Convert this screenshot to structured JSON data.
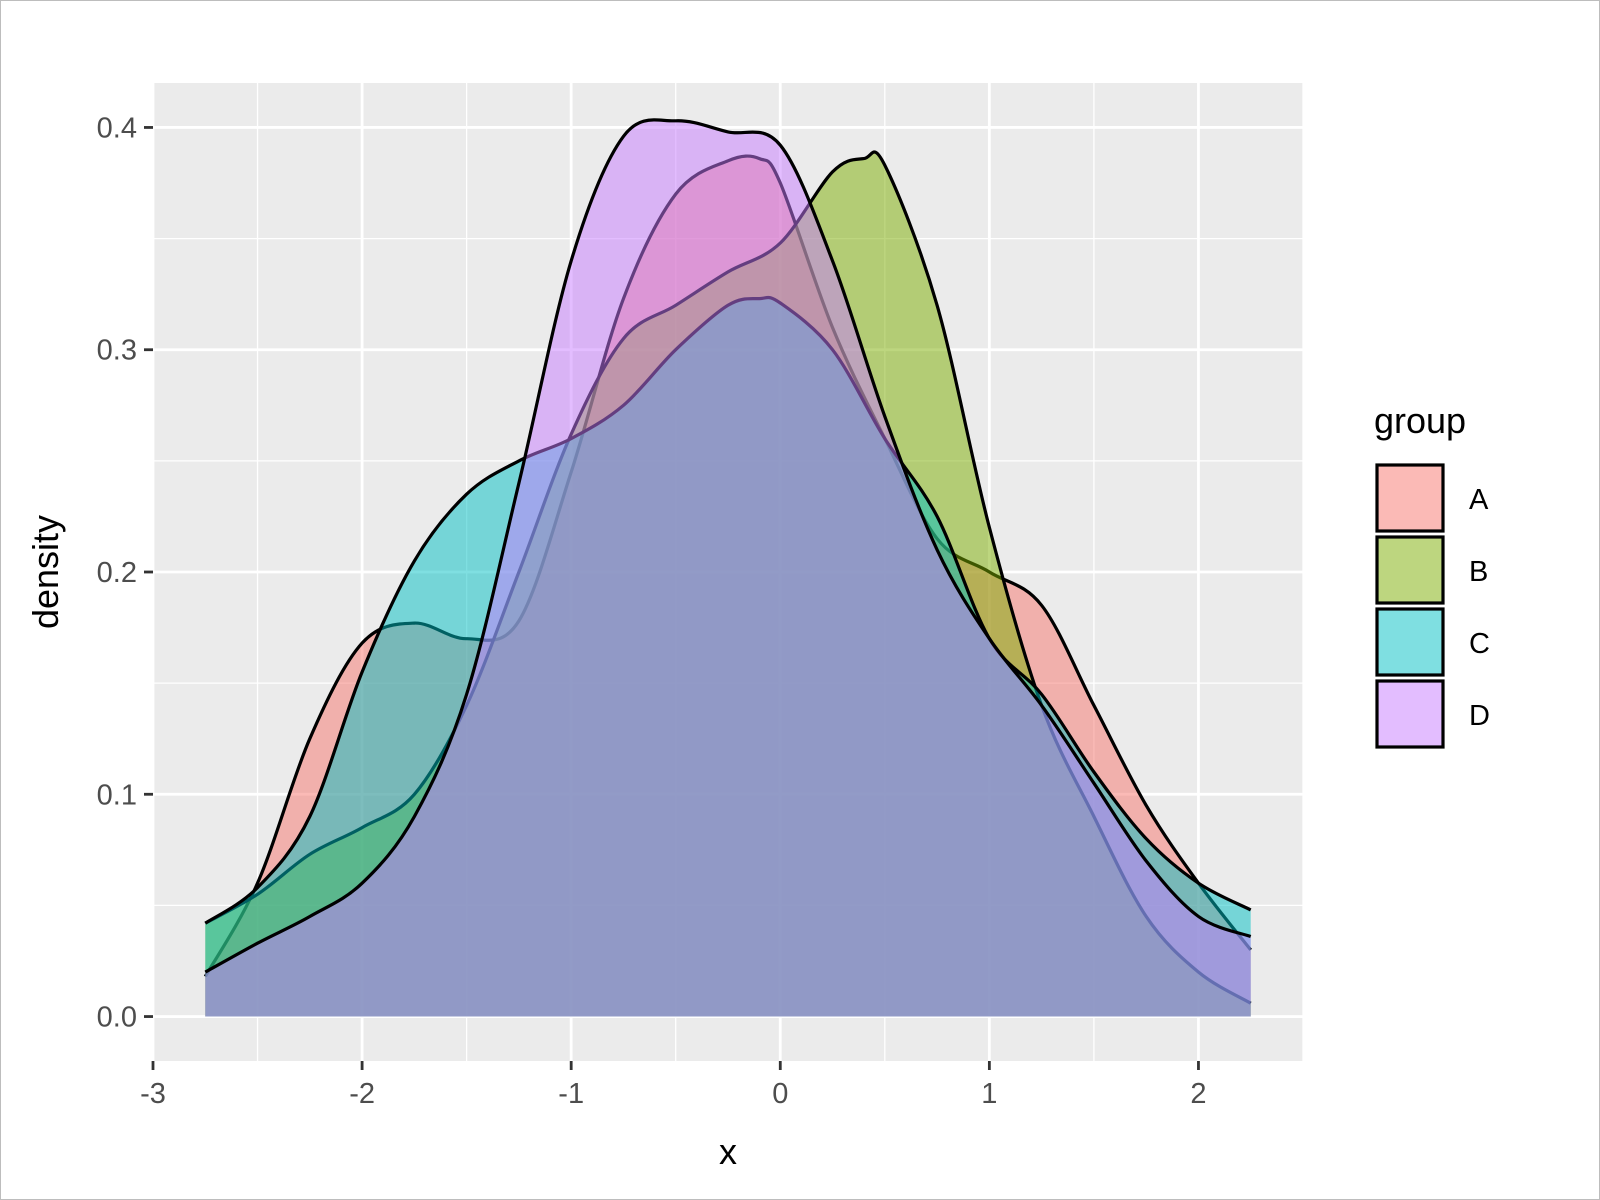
{
  "chart_data": {
    "type": "area",
    "subtype": "density",
    "xlabel": "x",
    "ylabel": "density",
    "xlim": [
      -3,
      2.5
    ],
    "ylim": [
      -0.02,
      0.42
    ],
    "x_ticks": [
      -3,
      -2,
      -1,
      0,
      1,
      2
    ],
    "x_tick_labels": [
      "-3",
      "-2",
      "-1",
      "0",
      "1",
      "2"
    ],
    "y_ticks": [
      0.0,
      0.1,
      0.2,
      0.3,
      0.4
    ],
    "y_tick_labels": [
      "0.0",
      "0.1",
      "0.2",
      "0.3",
      "0.4"
    ],
    "grid": true,
    "legend": {
      "title": "group",
      "position": "right"
    },
    "fill_opacity": 0.5,
    "series": [
      {
        "name": "A",
        "color": "#F8766D",
        "x": [
          -2.75,
          -2.5,
          -2.25,
          -2.0,
          -1.75,
          -1.5,
          -1.25,
          -1.0,
          -0.75,
          -0.5,
          -0.25,
          -0.1,
          0.0,
          0.25,
          0.5,
          0.75,
          1.0,
          1.25,
          1.5,
          1.75,
          2.0,
          2.25
        ],
        "y": [
          0.018,
          0.06,
          0.125,
          0.168,
          0.177,
          0.17,
          0.178,
          0.245,
          0.323,
          0.37,
          0.385,
          0.386,
          0.375,
          0.31,
          0.26,
          0.215,
          0.2,
          0.185,
          0.14,
          0.095,
          0.06,
          0.03
        ]
      },
      {
        "name": "B",
        "color": "#7CAE00",
        "x": [
          -2.75,
          -2.5,
          -2.25,
          -2.0,
          -1.75,
          -1.5,
          -1.25,
          -1.0,
          -0.75,
          -0.5,
          -0.25,
          0.0,
          0.25,
          0.4,
          0.5,
          0.75,
          1.0,
          1.25,
          1.5,
          1.75,
          2.0,
          2.25
        ],
        "y": [
          0.042,
          0.055,
          0.073,
          0.085,
          0.1,
          0.14,
          0.2,
          0.262,
          0.305,
          0.32,
          0.335,
          0.348,
          0.38,
          0.386,
          0.383,
          0.32,
          0.22,
          0.14,
          0.09,
          0.045,
          0.02,
          0.006
        ]
      },
      {
        "name": "C",
        "color": "#00BFC4",
        "x": [
          -2.75,
          -2.5,
          -2.25,
          -2.0,
          -1.75,
          -1.5,
          -1.25,
          -1.0,
          -0.75,
          -0.5,
          -0.25,
          -0.1,
          0.0,
          0.25,
          0.5,
          0.75,
          1.0,
          1.25,
          1.5,
          1.75,
          2.0,
          2.25
        ],
        "y": [
          0.042,
          0.058,
          0.09,
          0.155,
          0.205,
          0.235,
          0.25,
          0.26,
          0.275,
          0.3,
          0.32,
          0.323,
          0.321,
          0.3,
          0.26,
          0.225,
          0.17,
          0.145,
          0.11,
          0.08,
          0.06,
          0.048
        ]
      },
      {
        "name": "D",
        "color": "#C77CFF",
        "x": [
          -2.75,
          -2.5,
          -2.25,
          -2.0,
          -1.75,
          -1.5,
          -1.25,
          -1.0,
          -0.75,
          -0.5,
          -0.25,
          0.0,
          0.25,
          0.5,
          0.75,
          1.0,
          1.25,
          1.5,
          1.75,
          2.0,
          2.25
        ],
        "y": [
          0.02,
          0.033,
          0.045,
          0.06,
          0.09,
          0.145,
          0.24,
          0.34,
          0.396,
          0.403,
          0.398,
          0.392,
          0.34,
          0.27,
          0.21,
          0.17,
          0.14,
          0.105,
          0.07,
          0.045,
          0.036
        ]
      }
    ]
  }
}
